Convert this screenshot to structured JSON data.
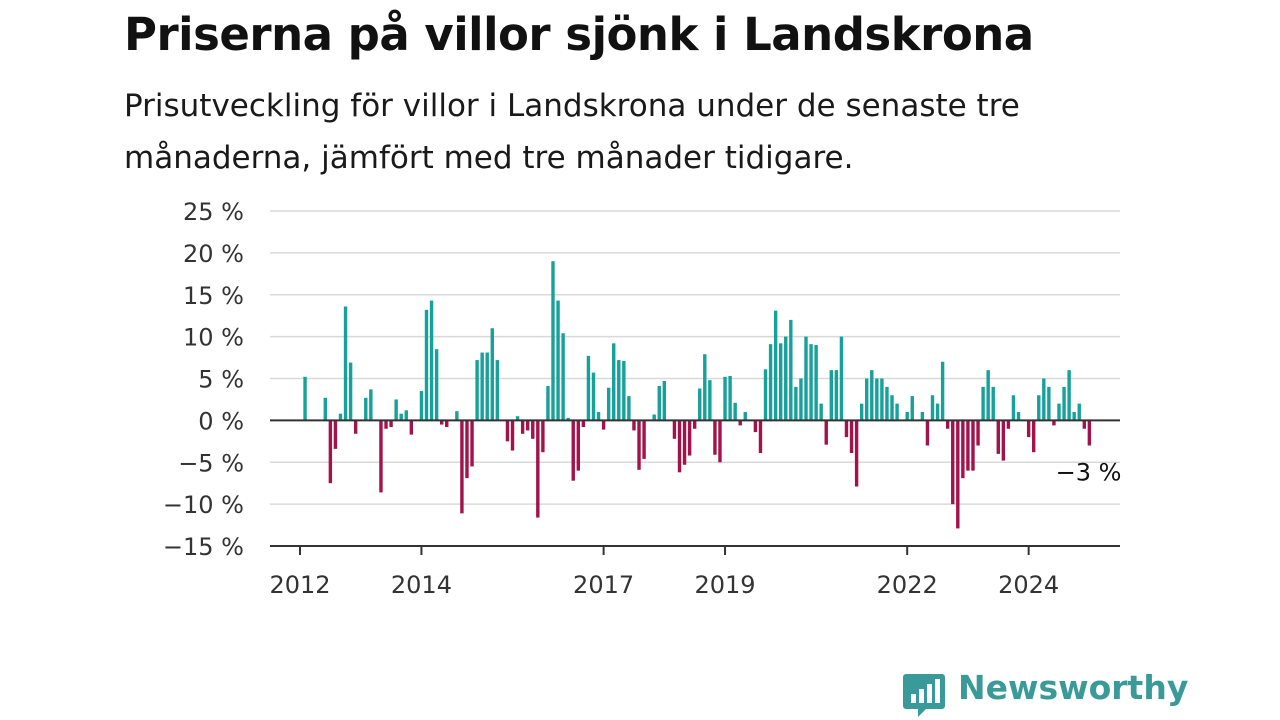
{
  "title": "Priserna på villor sjönk i Landskrona",
  "subtitle": "Prisutveckling för villor i Landskrona under de senaste tre månaderna, jämfört med tre månader tidigare.",
  "brand": {
    "name": "Newsworthy",
    "icon": "newsworthy-logo-icon",
    "color": "#3a9a9a"
  },
  "colors": {
    "positive": "#16a19a",
    "negative": "#a3124a",
    "grid": "#d9d9d9",
    "axis": "#333333"
  },
  "chart_data": {
    "type": "bar",
    "title": "Priserna på villor sjönk i Landskrona",
    "subtitle": "Prisutveckling för villor i Landskrona under de senaste tre månaderna, jämfört med tre månader tidigare.",
    "xlabel": "",
    "ylabel": "",
    "ylim": [
      -15,
      25
    ],
    "yticks": [
      25,
      20,
      15,
      10,
      5,
      0,
      -5,
      -10,
      -15
    ],
    "ytick_labels": [
      "25 %",
      "20 %",
      "15 %",
      "10 %",
      "5 %",
      "0 %",
      "−5 %",
      "−10 %",
      "−15 %"
    ],
    "xticks": [
      "2012",
      "2014",
      "2017",
      "2019",
      "2022",
      "2024"
    ],
    "grid": true,
    "last_value_label": "−3 %",
    "start": "2012-01",
    "frequency": "monthly",
    "series": [
      {
        "values": [
          0.0,
          5.2,
          0.0,
          0.0,
          0.0,
          2.7,
          -7.5,
          -3.4,
          0.8,
          13.6,
          6.9,
          -1.6,
          0.0,
          2.7,
          3.7,
          0.0,
          -8.6,
          -1.0,
          -0.8,
          2.5,
          0.8,
          1.2,
          -1.7,
          0.0,
          3.5,
          13.2,
          14.3,
          8.5,
          -0.5,
          -0.8,
          0.0,
          1.1,
          -11.1,
          -6.9,
          -5.5,
          7.2,
          8.1,
          8.1,
          11.0,
          7.2,
          0.0,
          -2.5,
          -3.6,
          0.5,
          -1.6,
          -1.2,
          -2.2,
          -11.6,
          -3.8,
          4.1,
          19.0,
          14.3,
          10.4,
          0.3,
          -7.2,
          -6.0,
          -0.8,
          7.7,
          5.7,
          1.0,
          -1.1,
          3.9,
          9.2,
          7.2,
          7.1,
          2.9,
          -1.2,
          -5.9,
          -4.6,
          0.0,
          0.7,
          4.1,
          4.7,
          0.0,
          -2.2,
          -6.2,
          -5.3,
          -4.2,
          -1.0,
          3.8,
          7.9,
          4.8,
          -4.1,
          -5.0,
          5.2,
          5.3,
          2.1,
          -0.6,
          1.0,
          0.0,
          -1.4,
          -3.9,
          6.1,
          9.1,
          13.1,
          9.2,
          10.0,
          12.0,
          4.0,
          5.0,
          10.0,
          9.1,
          9.0,
          2.0,
          -2.9,
          6.0,
          6.0,
          10.0,
          -2.0,
          -3.9,
          -7.9,
          2.0,
          5.0,
          6.0,
          5.0,
          5.0,
          4.0,
          3.0,
          2.0,
          0.0,
          1.0,
          2.9,
          0.0,
          1.0,
          -3.0,
          3.0,
          2.0,
          7.0,
          -1.0,
          -10.0,
          -12.9,
          -6.9,
          -6.0,
          -6.0,
          -3.0,
          4.0,
          6.0,
          4.0,
          -4.0,
          -4.8,
          -1.0,
          3.0,
          1.0,
          0.0,
          -2.0,
          -3.8,
          3.0,
          5.0,
          4.0,
          -0.6,
          2.0,
          4.0,
          6.0,
          1.0,
          2.0,
          -1.0,
          -3.0
        ]
      }
    ]
  }
}
